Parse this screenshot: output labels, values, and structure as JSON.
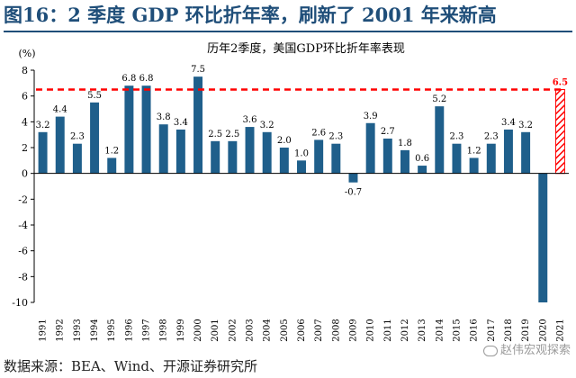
{
  "figure_title": "图16：2 季度 GDP 环比折年率，刷新了 2001 年来新高",
  "source_text": "数据来源：BEA、Wind、开源证券研究所",
  "watermark_text": "赵伟宏观探索",
  "colors": {
    "title": "#1f4e79",
    "bar": "#1f5f8b",
    "highlight": "#ff0000",
    "axis": "#000000"
  },
  "chart_data": {
    "type": "bar",
    "title": "历年2季度，美国GDP环比折年率表现",
    "unit_label": "(%)",
    "categories": [
      "1991",
      "1992",
      "1993",
      "1994",
      "1995",
      "1996",
      "1997",
      "1998",
      "1999",
      "2000",
      "2001",
      "2002",
      "2003",
      "2004",
      "2005",
      "2006",
      "2007",
      "2008",
      "2009",
      "2010",
      "2011",
      "2012",
      "2013",
      "2014",
      "2015",
      "2016",
      "2017",
      "2018",
      "2019",
      "2020",
      "2021"
    ],
    "values": [
      3.2,
      4.4,
      2.3,
      5.5,
      1.2,
      6.8,
      6.8,
      3.8,
      3.4,
      7.5,
      2.5,
      2.5,
      3.6,
      3.2,
      2.0,
      1.0,
      2.6,
      2.3,
      -0.7,
      3.9,
      2.7,
      1.8,
      0.6,
      5.2,
      2.3,
      1.2,
      2.3,
      3.4,
      3.2,
      -10.0,
      6.5
    ],
    "data_labels": [
      "3.2",
      "4.4",
      "2.3",
      "5.5",
      "1.2",
      "6.8",
      "6.8",
      "3.8",
      "3.4",
      "7.5",
      "2.5",
      "2.5",
      "3.6",
      "3.2",
      "2.0",
      "1.0",
      "2.6",
      "2.3",
      "-0.7",
      "3.9",
      "2.7",
      "1.8",
      "0.6",
      "5.2",
      "2.3",
      "1.2",
      "2.3",
      "3.4",
      "3.2",
      "",
      "6.5"
    ],
    "highlight_category": "2021",
    "reference_line": 6.5,
    "ylim": [
      -10,
      8
    ],
    "yticks": [
      8,
      6,
      4,
      2,
      0,
      -2,
      -4,
      -6,
      -8,
      -10
    ],
    "ytick_labels": [
      "8",
      "6",
      "4",
      "2",
      "0",
      "-2",
      "-4",
      "-6",
      "-8",
      "-10"
    ],
    "legend": "none",
    "grid": false
  }
}
